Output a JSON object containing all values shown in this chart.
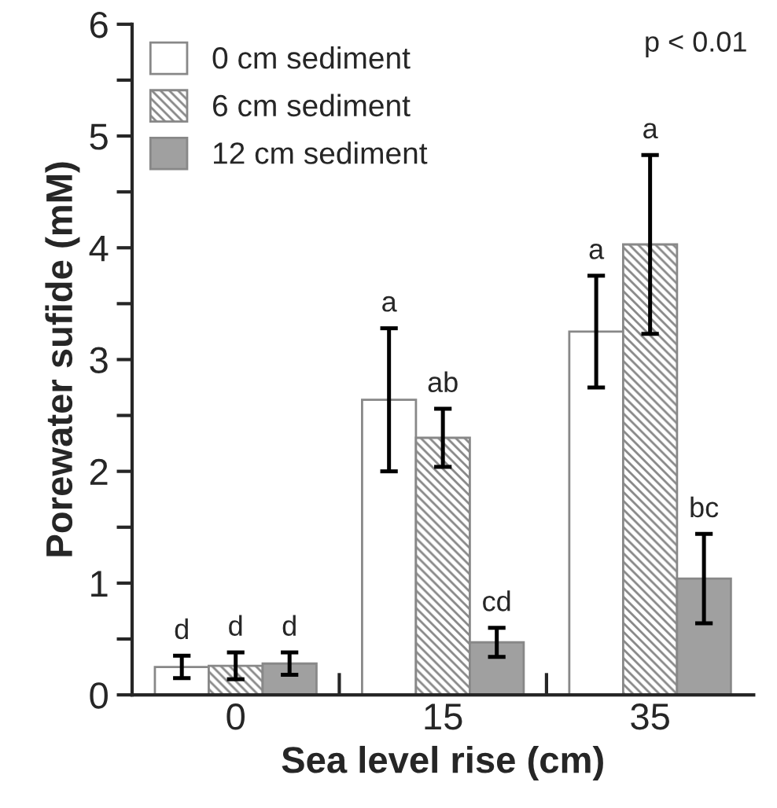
{
  "chart_data": {
    "type": "bar",
    "xlabel": "Sea level rise (cm)",
    "ylabel": "Porewater sufide (mM)",
    "categories": [
      "0",
      "15",
      "35"
    ],
    "series": [
      {
        "name": "0 cm sediment",
        "color": "#ffffff",
        "values": [
          0.25,
          2.64,
          3.25
        ],
        "errors": [
          0.1,
          0.64,
          0.5
        ]
      },
      {
        "name": "6 cm sediment",
        "color": "#888888",
        "values": [
          0.26,
          2.3,
          4.03
        ],
        "errors": [
          0.12,
          0.26,
          0.8
        ]
      },
      {
        "name": "12 cm sediment",
        "color": "#a0a0a0",
        "values": [
          0.28,
          0.47,
          1.04
        ],
        "errors": [
          0.1,
          0.13,
          0.4
        ]
      }
    ],
    "ylim": [
      0,
      6
    ],
    "yticks": [
      0,
      {
        "value": 0.5,
        "label": null
      },
      1,
      {
        "value": 1.5,
        "label": null
      },
      2,
      {
        "value": 2.5,
        "label": null
      },
      3,
      {
        "value": 3.5,
        "label": null
      },
      4,
      {
        "value": 4.5,
        "label": null
      },
      5,
      {
        "value": 5.5,
        "label": null
      },
      6
    ],
    "legend": "top left",
    "grid": false,
    "annotations": [
      "d",
      "d",
      "d",
      "a",
      "ab",
      "cd",
      "a",
      "a",
      "bc",
      "p < 0.01"
    ]
  }
}
